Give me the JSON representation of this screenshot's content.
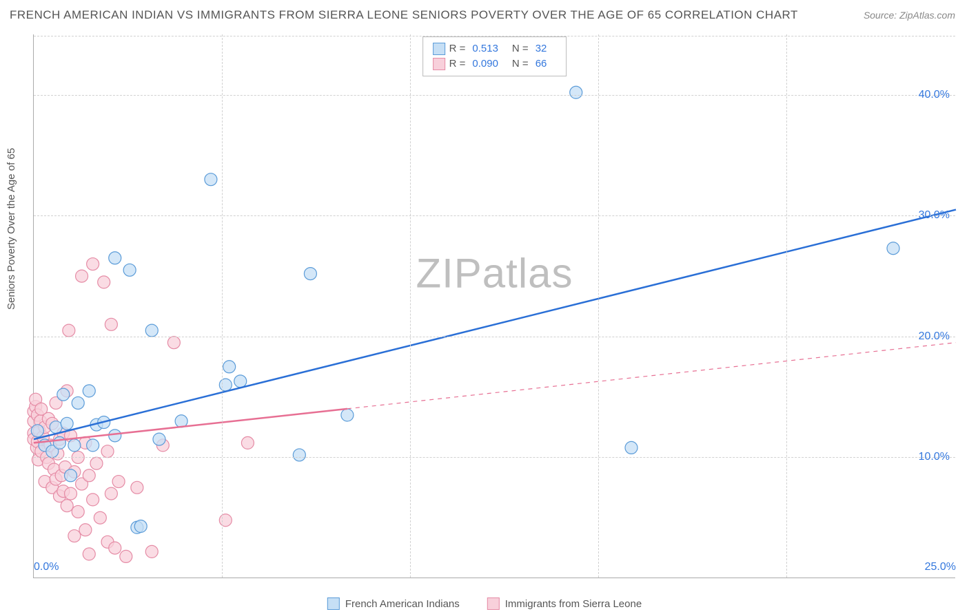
{
  "title": "FRENCH AMERICAN INDIAN VS IMMIGRANTS FROM SIERRA LEONE SENIORS POVERTY OVER THE AGE OF 65 CORRELATION CHART",
  "source": "Source: ZipAtlas.com",
  "ylabel": "Seniors Poverty Over the Age of 65",
  "watermark": "ZIPatlas",
  "chart": {
    "type": "scatter",
    "background_color": "#ffffff",
    "grid_color": "#d0d0d0",
    "axis_color": "#aaaaaa",
    "tick_color": "#3377dd",
    "label_color": "#555555",
    "title_fontsize": 17,
    "tick_fontsize": 16,
    "label_fontsize": 15,
    "xlim": [
      0,
      25
    ],
    "ylim": [
      0,
      45
    ],
    "xticks": [
      0,
      25
    ],
    "xtick_labels": [
      "0.0%",
      "25.0%"
    ],
    "xgrid": [
      5.1,
      10.2,
      15.3,
      20.4
    ],
    "yticks": [
      10,
      20,
      30,
      40
    ],
    "ytick_labels": [
      "10.0%",
      "20.0%",
      "30.0%",
      "40.0%"
    ],
    "marker_radius": 9,
    "marker_stroke_width": 1.2,
    "trend_line_width_solid": 2.5,
    "trend_line_width_dash": 1.2
  },
  "series": [
    {
      "name": "French American Indians",
      "fill": "#c6dff5",
      "stroke": "#5a9bd8",
      "line_color": "#2a6fd6",
      "R": "0.513",
      "N": "32",
      "trend": {
        "x1": 0,
        "y1": 11.5,
        "x2": 25,
        "y2": 30.5,
        "solid_to_x": 25
      },
      "points": [
        [
          0.1,
          12.2
        ],
        [
          0.3,
          11.0
        ],
        [
          0.5,
          10.5
        ],
        [
          0.6,
          12.5
        ],
        [
          0.7,
          11.2
        ],
        [
          0.8,
          15.2
        ],
        [
          0.9,
          12.8
        ],
        [
          1.0,
          8.5
        ],
        [
          1.1,
          11.0
        ],
        [
          1.2,
          14.5
        ],
        [
          1.5,
          15.5
        ],
        [
          1.6,
          11.0
        ],
        [
          1.7,
          12.7
        ],
        [
          1.9,
          12.9
        ],
        [
          2.2,
          26.5
        ],
        [
          2.2,
          11.8
        ],
        [
          2.6,
          25.5
        ],
        [
          2.8,
          4.2
        ],
        [
          2.9,
          4.3
        ],
        [
          3.2,
          20.5
        ],
        [
          3.4,
          11.5
        ],
        [
          4.0,
          13.0
        ],
        [
          4.8,
          33.0
        ],
        [
          5.2,
          16.0
        ],
        [
          5.3,
          17.5
        ],
        [
          5.6,
          16.3
        ],
        [
          7.2,
          10.2
        ],
        [
          7.5,
          25.2
        ],
        [
          8.5,
          13.5
        ],
        [
          14.7,
          40.2
        ],
        [
          16.2,
          10.8
        ],
        [
          23.3,
          27.3
        ]
      ]
    },
    {
      "name": "Immigrants from Sierra Leone",
      "fill": "#f8d0db",
      "stroke": "#e58ba5",
      "line_color": "#e76f93",
      "R": "0.090",
      "N": "66",
      "trend": {
        "x1": 0,
        "y1": 11.2,
        "x2": 25,
        "y2": 19.5,
        "solid_to_x": 8.5
      },
      "points": [
        [
          0.0,
          12.0
        ],
        [
          0.0,
          13.0
        ],
        [
          0.0,
          13.8
        ],
        [
          0.0,
          11.5
        ],
        [
          0.05,
          14.2
        ],
        [
          0.05,
          14.8
        ],
        [
          0.08,
          10.8
        ],
        [
          0.1,
          11.3
        ],
        [
          0.1,
          13.5
        ],
        [
          0.12,
          9.8
        ],
        [
          0.15,
          12.2
        ],
        [
          0.18,
          13.0
        ],
        [
          0.2,
          10.5
        ],
        [
          0.2,
          14.0
        ],
        [
          0.25,
          11.7
        ],
        [
          0.3,
          8.0
        ],
        [
          0.3,
          12.5
        ],
        [
          0.35,
          10.0
        ],
        [
          0.4,
          9.5
        ],
        [
          0.4,
          13.2
        ],
        [
          0.45,
          11.0
        ],
        [
          0.5,
          7.5
        ],
        [
          0.5,
          12.8
        ],
        [
          0.55,
          9.0
        ],
        [
          0.6,
          8.2
        ],
        [
          0.6,
          14.5
        ],
        [
          0.65,
          10.3
        ],
        [
          0.7,
          6.8
        ],
        [
          0.7,
          11.5
        ],
        [
          0.75,
          8.5
        ],
        [
          0.8,
          7.2
        ],
        [
          0.8,
          12.0
        ],
        [
          0.85,
          9.2
        ],
        [
          0.9,
          6.0
        ],
        [
          0.9,
          15.5
        ],
        [
          0.95,
          20.5
        ],
        [
          1.0,
          7.0
        ],
        [
          1.0,
          11.8
        ],
        [
          1.1,
          8.8
        ],
        [
          1.1,
          3.5
        ],
        [
          1.2,
          10.0
        ],
        [
          1.2,
          5.5
        ],
        [
          1.3,
          7.8
        ],
        [
          1.3,
          25.0
        ],
        [
          1.4,
          4.0
        ],
        [
          1.4,
          11.2
        ],
        [
          1.5,
          8.5
        ],
        [
          1.5,
          2.0
        ],
        [
          1.6,
          6.5
        ],
        [
          1.6,
          26.0
        ],
        [
          1.7,
          9.5
        ],
        [
          1.8,
          5.0
        ],
        [
          1.9,
          24.5
        ],
        [
          2.0,
          3.0
        ],
        [
          2.0,
          10.5
        ],
        [
          2.1,
          7.0
        ],
        [
          2.1,
          21.0
        ],
        [
          2.2,
          2.5
        ],
        [
          2.3,
          8.0
        ],
        [
          2.5,
          1.8
        ],
        [
          2.8,
          7.5
        ],
        [
          3.2,
          2.2
        ],
        [
          3.5,
          11.0
        ],
        [
          3.8,
          19.5
        ],
        [
          5.2,
          4.8
        ],
        [
          5.8,
          11.2
        ]
      ]
    }
  ],
  "legend_top": {
    "R_label": "R =",
    "N_label": "N ="
  },
  "legend_bottom": {
    "item1": "French American Indians",
    "item2": "Immigrants from Sierra Leone"
  }
}
